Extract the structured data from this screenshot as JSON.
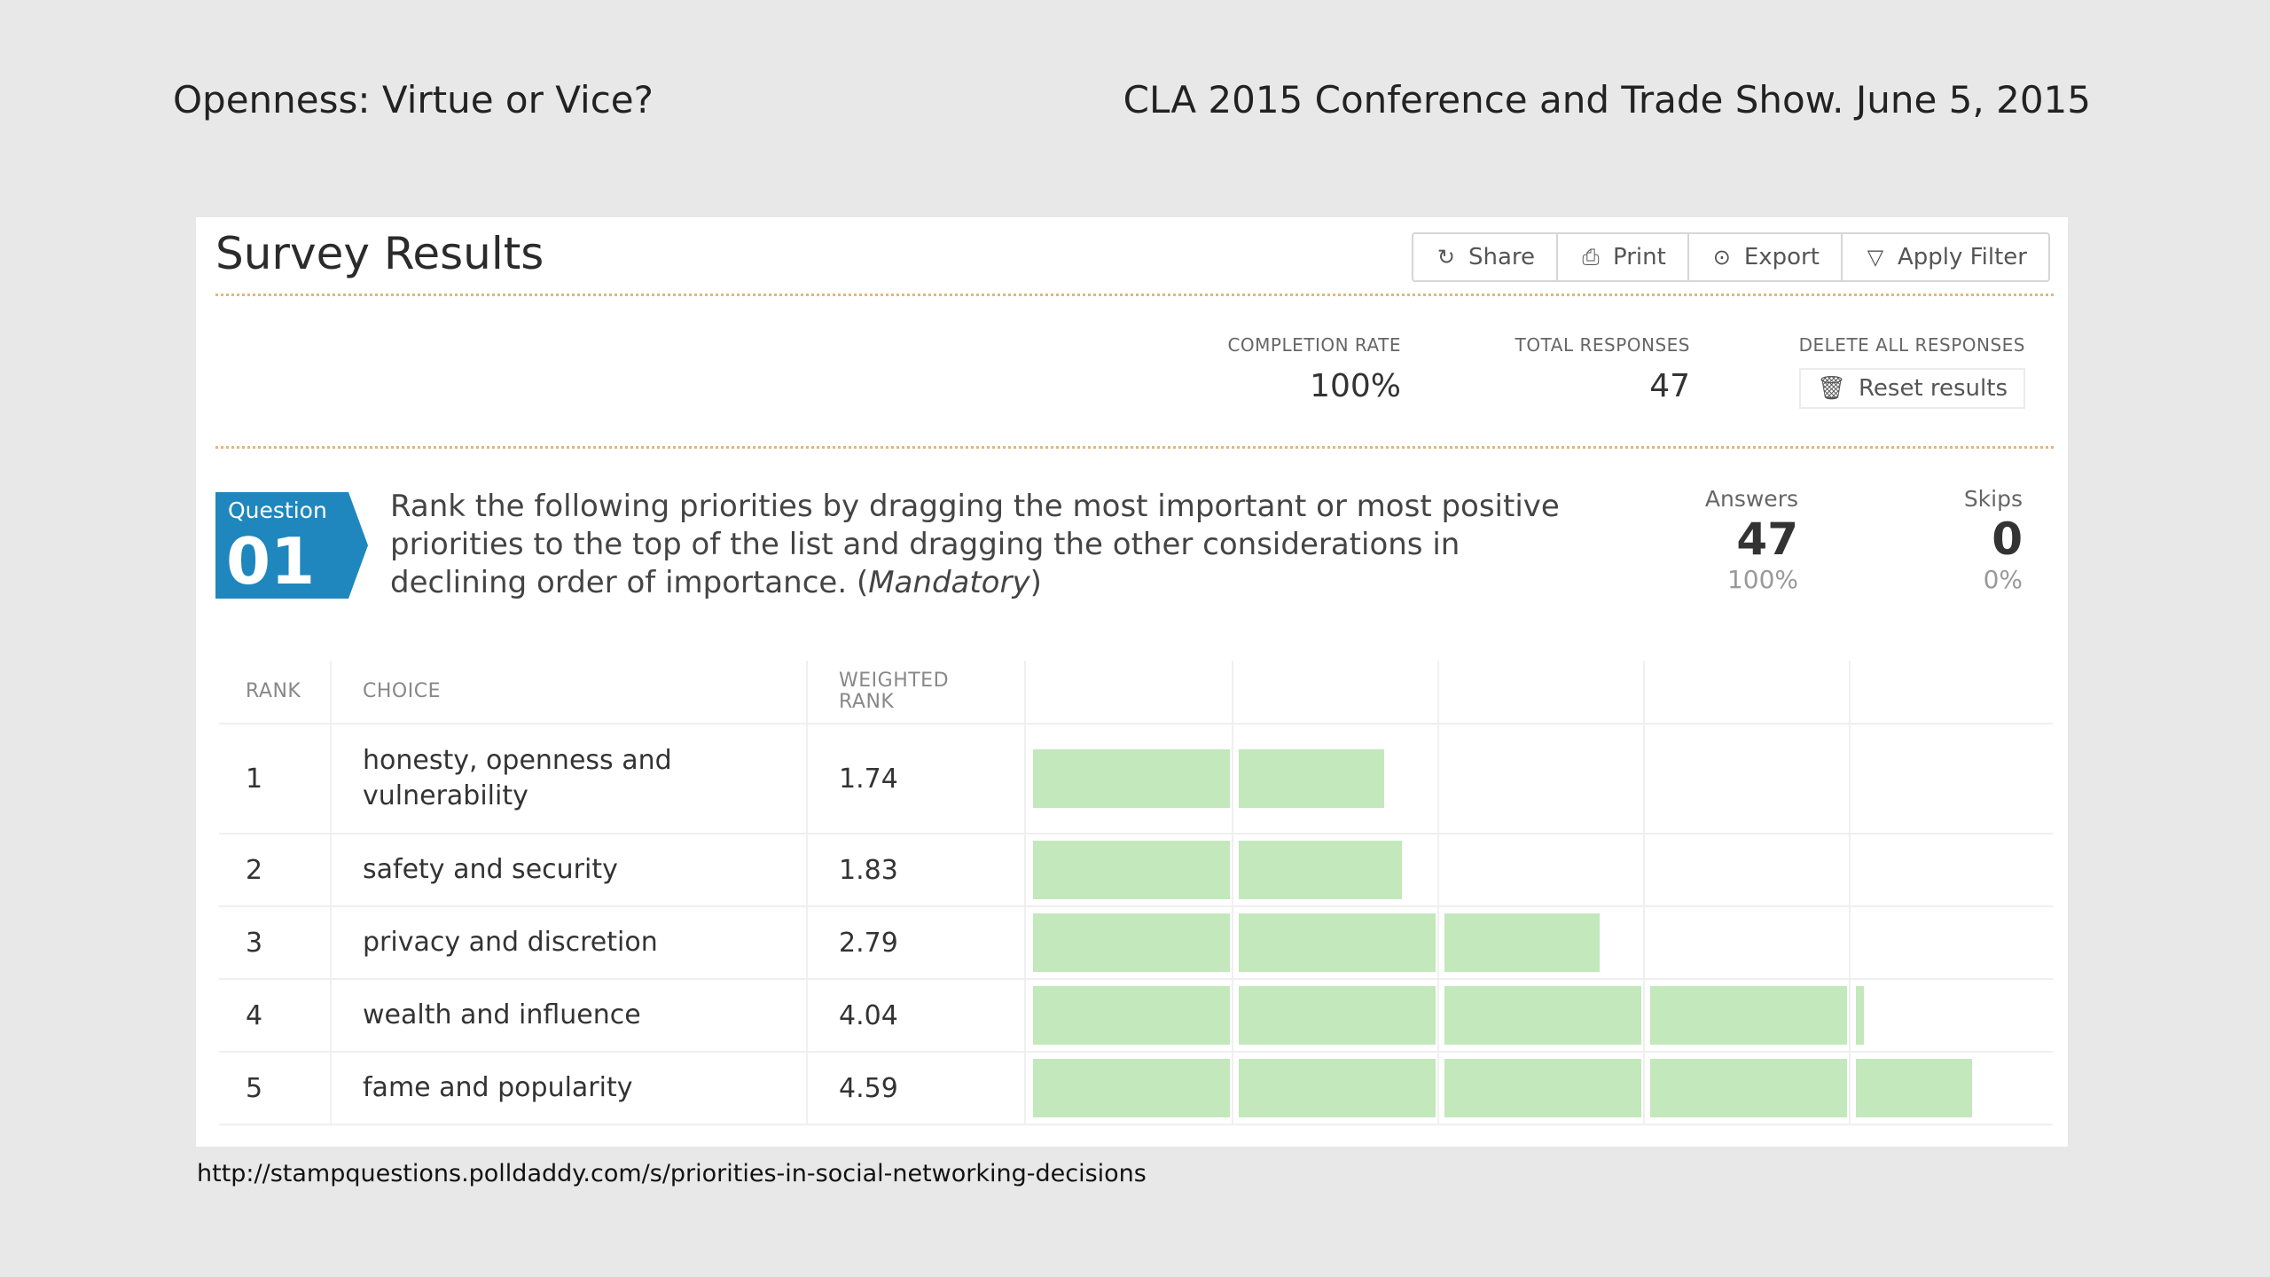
{
  "slide": {
    "title_left": "Openness:  Virtue or Vice?",
    "title_right": "CLA 2015 Conference and Trade Show.  June 5, 2015",
    "footer_url": "http://stampquestions.polldaddy.com/s/priorities-in-social-networking-decisions"
  },
  "header": {
    "title": "Survey Results",
    "buttons": [
      {
        "label": "Share",
        "icon": "share-icon"
      },
      {
        "label": "Print",
        "icon": "print-icon"
      },
      {
        "label": "Export",
        "icon": "export-icon"
      },
      {
        "label": "Apply Filter",
        "icon": "filter-icon"
      }
    ]
  },
  "stats": {
    "completion_label": "COMPLETION RATE",
    "completion_value": "100%",
    "total_label": "TOTAL RESPONSES",
    "total_value": "47",
    "delete_label": "DELETE ALL RESPONSES",
    "reset_label": "Reset results"
  },
  "question": {
    "badge_label": "Question",
    "number": "01",
    "text": "Rank the following priorities by dragging the most important or most positive priorities to the top of the list and dragging the other considerations in declining order of importance.",
    "mandatory": "Mandatory",
    "answers_label": "Answers",
    "answers_count": "47",
    "answers_pct": "100%",
    "skips_label": "Skips",
    "skips_count": "0",
    "skips_pct": "0%"
  },
  "table": {
    "headers": {
      "rank": "RANK",
      "choice": "CHOICE",
      "weighted": "WEIGHTED RANK"
    },
    "rows": [
      {
        "rank": "1",
        "choice": "honesty, openness and vulnerability",
        "weighted": "1.74"
      },
      {
        "rank": "2",
        "choice": "safety and security",
        "weighted": "1.83"
      },
      {
        "rank": "3",
        "choice": "privacy and discretion",
        "weighted": "2.79"
      },
      {
        "rank": "4",
        "choice": "wealth and influence",
        "weighted": "4.04"
      },
      {
        "rank": "5",
        "choice": "fame and popularity",
        "weighted": "4.59"
      }
    ]
  },
  "chart_data": {
    "type": "bar",
    "categories": [
      "honesty, openness and vulnerability",
      "safety and security",
      "privacy and discretion",
      "wealth and influence",
      "fame and popularity"
    ],
    "values": [
      1.74,
      1.83,
      2.79,
      4.04,
      4.59
    ],
    "xlim": [
      0,
      5
    ],
    "segments": 5,
    "colors": {
      "bar": "#c2e8bb"
    }
  }
}
